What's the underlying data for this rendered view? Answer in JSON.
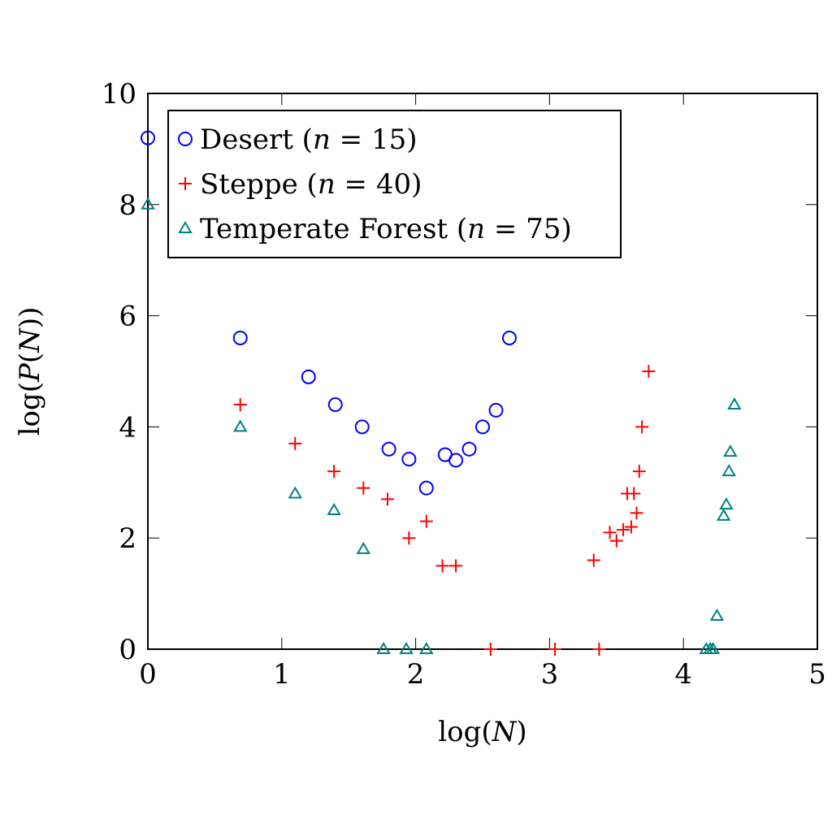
{
  "chart_data": {
    "type": "scatter",
    "title": "",
    "xlabel": "log(N)",
    "ylabel": "log(P(N))",
    "xlim": [
      0,
      5
    ],
    "ylim": [
      0,
      10
    ],
    "xticks": [
      "0",
      "1",
      "2",
      "3",
      "4",
      "5"
    ],
    "yticks": [
      "0",
      "2",
      "4",
      "6",
      "8",
      "10"
    ],
    "grid": false,
    "legend_position": "top-left",
    "series": [
      {
        "name": "Desert (n = 15)",
        "marker": "circle",
        "color": "#0000ff",
        "points": [
          [
            0.0,
            9.2
          ],
          [
            0.69,
            5.6
          ],
          [
            1.2,
            4.9
          ],
          [
            1.4,
            4.4
          ],
          [
            1.6,
            4.0
          ],
          [
            1.8,
            3.6
          ],
          [
            1.95,
            3.42
          ],
          [
            2.08,
            2.9
          ],
          [
            2.22,
            3.5
          ],
          [
            2.3,
            3.4
          ],
          [
            2.4,
            3.6
          ],
          [
            2.5,
            4.0
          ],
          [
            2.6,
            4.3
          ],
          [
            2.7,
            5.6
          ]
        ]
      },
      {
        "name": "Steppe (n = 40)",
        "marker": "plus",
        "color": "#ff0000",
        "points": [
          [
            0.69,
            4.4
          ],
          [
            1.1,
            3.7
          ],
          [
            1.39,
            3.2
          ],
          [
            1.61,
            2.9
          ],
          [
            1.79,
            2.7
          ],
          [
            1.95,
            2.0
          ],
          [
            2.08,
            2.3
          ],
          [
            2.2,
            1.5
          ],
          [
            2.3,
            1.5
          ],
          [
            2.56,
            0.0
          ],
          [
            3.04,
            0.0
          ],
          [
            3.33,
            1.6
          ],
          [
            3.37,
            0.0
          ],
          [
            3.45,
            2.1
          ],
          [
            3.5,
            1.95
          ],
          [
            3.55,
            2.15
          ],
          [
            3.58,
            2.8
          ],
          [
            3.61,
            2.2
          ],
          [
            3.63,
            2.8
          ],
          [
            3.65,
            2.45
          ],
          [
            3.67,
            3.2
          ],
          [
            3.69,
            4.0
          ],
          [
            3.74,
            5.0
          ]
        ]
      },
      {
        "name": "Temperate Forest (n = 75)",
        "marker": "triangle",
        "color": "#008080",
        "points": [
          [
            0.0,
            8.0
          ],
          [
            0.69,
            4.0
          ],
          [
            1.1,
            2.8
          ],
          [
            1.39,
            2.5
          ],
          [
            1.61,
            1.8
          ],
          [
            1.76,
            0.0
          ],
          [
            1.93,
            0.0
          ],
          [
            2.08,
            0.0
          ],
          [
            4.17,
            0.0
          ],
          [
            4.2,
            0.0
          ],
          [
            4.22,
            0.0
          ],
          [
            4.25,
            0.6
          ],
          [
            4.3,
            2.4
          ],
          [
            4.32,
            2.6
          ],
          [
            4.34,
            3.2
          ],
          [
            4.35,
            3.55
          ],
          [
            4.38,
            4.4
          ]
        ]
      }
    ],
    "legend": [
      {
        "marker": "circle",
        "color": "#0000ff",
        "prefix": "Desert (",
        "var": "n",
        "suffix": " = 15)"
      },
      {
        "marker": "plus",
        "color": "#ff0000",
        "prefix": "Steppe (",
        "var": "n",
        "suffix": " = 40)"
      },
      {
        "marker": "triangle",
        "color": "#008080",
        "prefix": "Temperate Forest (",
        "var": "n",
        "suffix": " = 75)"
      }
    ]
  }
}
